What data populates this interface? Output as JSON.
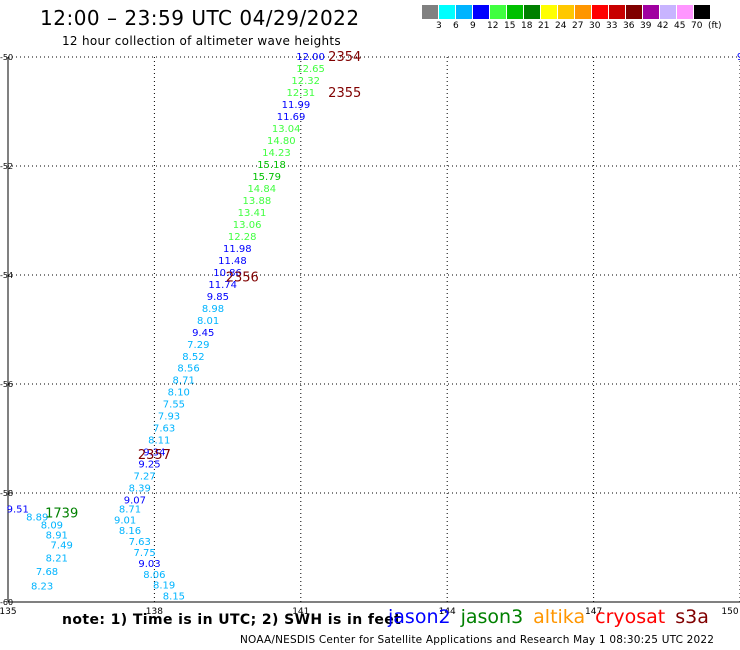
{
  "header": {
    "title": "12:00 – 23:59 UTC 04/29/2022",
    "subtitle": "12 hour collection of altimeter wave heights"
  },
  "color_legend": {
    "colors": [
      "#808080",
      "#00ffff",
      "#00b4ff",
      "#0000ff",
      "#40ff40",
      "#00c000",
      "#008000",
      "#ffff00",
      "#ffc800",
      "#ff9600",
      "#ff0000",
      "#c80000",
      "#800000",
      "#a000a0",
      "#c8b4ff",
      "#ff96ff",
      "#000000"
    ],
    "labels": [
      "3",
      "6",
      "9",
      "12",
      "15",
      "18",
      "21",
      "24",
      "27",
      "30",
      "33",
      "36",
      "39",
      "42",
      "45",
      "70",
      "(ft)"
    ]
  },
  "footer": {
    "note": "note:  1) Time is in UTC;  2) SWH is in feet",
    "satellites": [
      {
        "name": "jason2",
        "color": "#0000ff"
      },
      {
        "name": "jason3",
        "color": "#008000"
      },
      {
        "name": "altika",
        "color": "#ff9600"
      },
      {
        "name": "cryosat",
        "color": "#ff0000"
      },
      {
        "name": "s3a",
        "color": "#800000"
      }
    ],
    "credit": "NOAA/NESDIS Center for Satellite Applications and Research    May  1 08:30:25 UTC 2022"
  },
  "chart_data": {
    "type": "scatter",
    "x_ticks": [
      135,
      138,
      141,
      144,
      147,
      150
    ],
    "y_ticks": [
      -50,
      -52,
      -54,
      -56,
      -58,
      -60
    ],
    "xlim": [
      135,
      150
    ],
    "ylim": [
      -60,
      -50
    ],
    "grid": true,
    "points": [
      {
        "x": 141.2,
        "y": -50.0,
        "label": "12.00",
        "color": "#0000ff"
      },
      {
        "x": 141.2,
        "y": -50.22,
        "label": "12.65",
        "color": "#40ff40"
      },
      {
        "x": 141.1,
        "y": -50.44,
        "label": "12.32",
        "color": "#40ff40"
      },
      {
        "x": 141.0,
        "y": -50.66,
        "label": "12.31",
        "color": "#40ff40"
      },
      {
        "x": 140.9,
        "y": -50.88,
        "label": "11.99",
        "color": "#0000ff"
      },
      {
        "x": 140.8,
        "y": -51.1,
        "label": "11.69",
        "color": "#0000ff"
      },
      {
        "x": 140.7,
        "y": -51.32,
        "label": "13.04",
        "color": "#40ff40"
      },
      {
        "x": 140.6,
        "y": -51.54,
        "label": "14.80",
        "color": "#40ff40"
      },
      {
        "x": 140.5,
        "y": -51.76,
        "label": "14.23",
        "color": "#40ff40"
      },
      {
        "x": 140.4,
        "y": -51.98,
        "label": "15.18",
        "color": "#00c000"
      },
      {
        "x": 140.3,
        "y": -52.2,
        "label": "15.79",
        "color": "#00c000"
      },
      {
        "x": 140.2,
        "y": -52.42,
        "label": "14.84",
        "color": "#40ff40"
      },
      {
        "x": 140.1,
        "y": -52.64,
        "label": "13.88",
        "color": "#40ff40"
      },
      {
        "x": 140.0,
        "y": -52.86,
        "label": "13.41",
        "color": "#40ff40"
      },
      {
        "x": 139.9,
        "y": -53.08,
        "label": "13.06",
        "color": "#40ff40"
      },
      {
        "x": 139.8,
        "y": -53.3,
        "label": "12.28",
        "color": "#40ff40"
      },
      {
        "x": 139.7,
        "y": -53.52,
        "label": "11.98",
        "color": "#0000ff"
      },
      {
        "x": 139.6,
        "y": -53.74,
        "label": "11.48",
        "color": "#0000ff"
      },
      {
        "x": 139.5,
        "y": -53.96,
        "label": "10.86",
        "color": "#0000ff"
      },
      {
        "x": 139.4,
        "y": -54.18,
        "label": "11.74",
        "color": "#0000ff"
      },
      {
        "x": 139.3,
        "y": -54.4,
        "label": "9.85",
        "color": "#0000ff"
      },
      {
        "x": 139.2,
        "y": -54.62,
        "label": "8.98",
        "color": "#00b4ff"
      },
      {
        "x": 139.1,
        "y": -54.84,
        "label": "8.01",
        "color": "#00b4ff"
      },
      {
        "x": 139.0,
        "y": -55.06,
        "label": "9.45",
        "color": "#0000ff"
      },
      {
        "x": 138.9,
        "y": -55.28,
        "label": "7.29",
        "color": "#00b4ff"
      },
      {
        "x": 138.8,
        "y": -55.5,
        "label": "8.52",
        "color": "#00b4ff"
      },
      {
        "x": 138.7,
        "y": -55.72,
        "label": "8.56",
        "color": "#00b4ff"
      },
      {
        "x": 138.6,
        "y": -55.94,
        "label": "8.71",
        "color": "#00b4ff"
      },
      {
        "x": 138.5,
        "y": -56.16,
        "label": "8.10",
        "color": "#00b4ff"
      },
      {
        "x": 138.4,
        "y": -56.38,
        "label": "7.55",
        "color": "#00b4ff"
      },
      {
        "x": 138.3,
        "y": -56.6,
        "label": "7.93",
        "color": "#00b4ff"
      },
      {
        "x": 138.2,
        "y": -56.82,
        "label": "7.63",
        "color": "#00b4ff"
      },
      {
        "x": 138.1,
        "y": -57.04,
        "label": "8.11",
        "color": "#00b4ff"
      },
      {
        "x": 138.0,
        "y": -57.26,
        "label": "9.34",
        "color": "#0000ff"
      },
      {
        "x": 137.9,
        "y": -57.48,
        "label": "9.25",
        "color": "#0000ff"
      },
      {
        "x": 137.8,
        "y": -57.7,
        "label": "7.27",
        "color": "#00b4ff"
      },
      {
        "x": 137.7,
        "y": -57.92,
        "label": "8.39",
        "color": "#00b4ff"
      },
      {
        "x": 137.6,
        "y": -58.14,
        "label": "9.07",
        "color": "#0000ff"
      },
      {
        "x": 137.5,
        "y": -58.3,
        "label": "8.71",
        "color": "#00b4ff"
      },
      {
        "x": 137.4,
        "y": -58.5,
        "label": "9.01",
        "color": "#00b4ff"
      },
      {
        "x": 137.5,
        "y": -58.7,
        "label": "8.16",
        "color": "#00b4ff"
      },
      {
        "x": 137.7,
        "y": -58.9,
        "label": "7.63",
        "color": "#00b4ff"
      },
      {
        "x": 137.8,
        "y": -59.1,
        "label": "7.75",
        "color": "#00b4ff"
      },
      {
        "x": 137.9,
        "y": -59.3,
        "label": "9.03",
        "color": "#0000ff"
      },
      {
        "x": 138.0,
        "y": -59.5,
        "label": "8.06",
        "color": "#00b4ff"
      },
      {
        "x": 138.2,
        "y": -59.7,
        "label": "8.19",
        "color": "#00b4ff"
      },
      {
        "x": 138.4,
        "y": -59.9,
        "label": "8.15",
        "color": "#00b4ff"
      },
      {
        "x": 135.2,
        "y": -58.3,
        "label": "9.51",
        "color": "#0000ff"
      },
      {
        "x": 135.6,
        "y": -58.45,
        "label": "8.89",
        "color": "#00b4ff"
      },
      {
        "x": 135.9,
        "y": -58.6,
        "label": "8.09",
        "color": "#00b4ff"
      },
      {
        "x": 136.0,
        "y": -58.78,
        "label": "8.91",
        "color": "#00b4ff"
      },
      {
        "x": 136.1,
        "y": -58.96,
        "label": "7.49",
        "color": "#00b4ff"
      },
      {
        "x": 136.0,
        "y": -59.2,
        "label": "8.21",
        "color": "#00b4ff"
      },
      {
        "x": 135.8,
        "y": -59.45,
        "label": "7.68",
        "color": "#00b4ff"
      },
      {
        "x": 135.7,
        "y": -59.72,
        "label": "8.23",
        "color": "#00b4ff"
      },
      {
        "x": 150.0,
        "y": -50.0,
        "label": "9",
        "color": "#0000ff"
      }
    ],
    "time_labels": [
      {
        "x": 141.9,
        "y": -50.0,
        "label": "2354",
        "color": "#800000"
      },
      {
        "x": 141.9,
        "y": -50.66,
        "label": "2355",
        "color": "#800000"
      },
      {
        "x": 139.8,
        "y": -54.05,
        "label": "2356",
        "color": "#800000"
      },
      {
        "x": 138.0,
        "y": -57.3,
        "label": "2357",
        "color": "#800000"
      },
      {
        "x": 136.1,
        "y": -58.38,
        "label": "1739",
        "color": "#008000"
      }
    ]
  }
}
